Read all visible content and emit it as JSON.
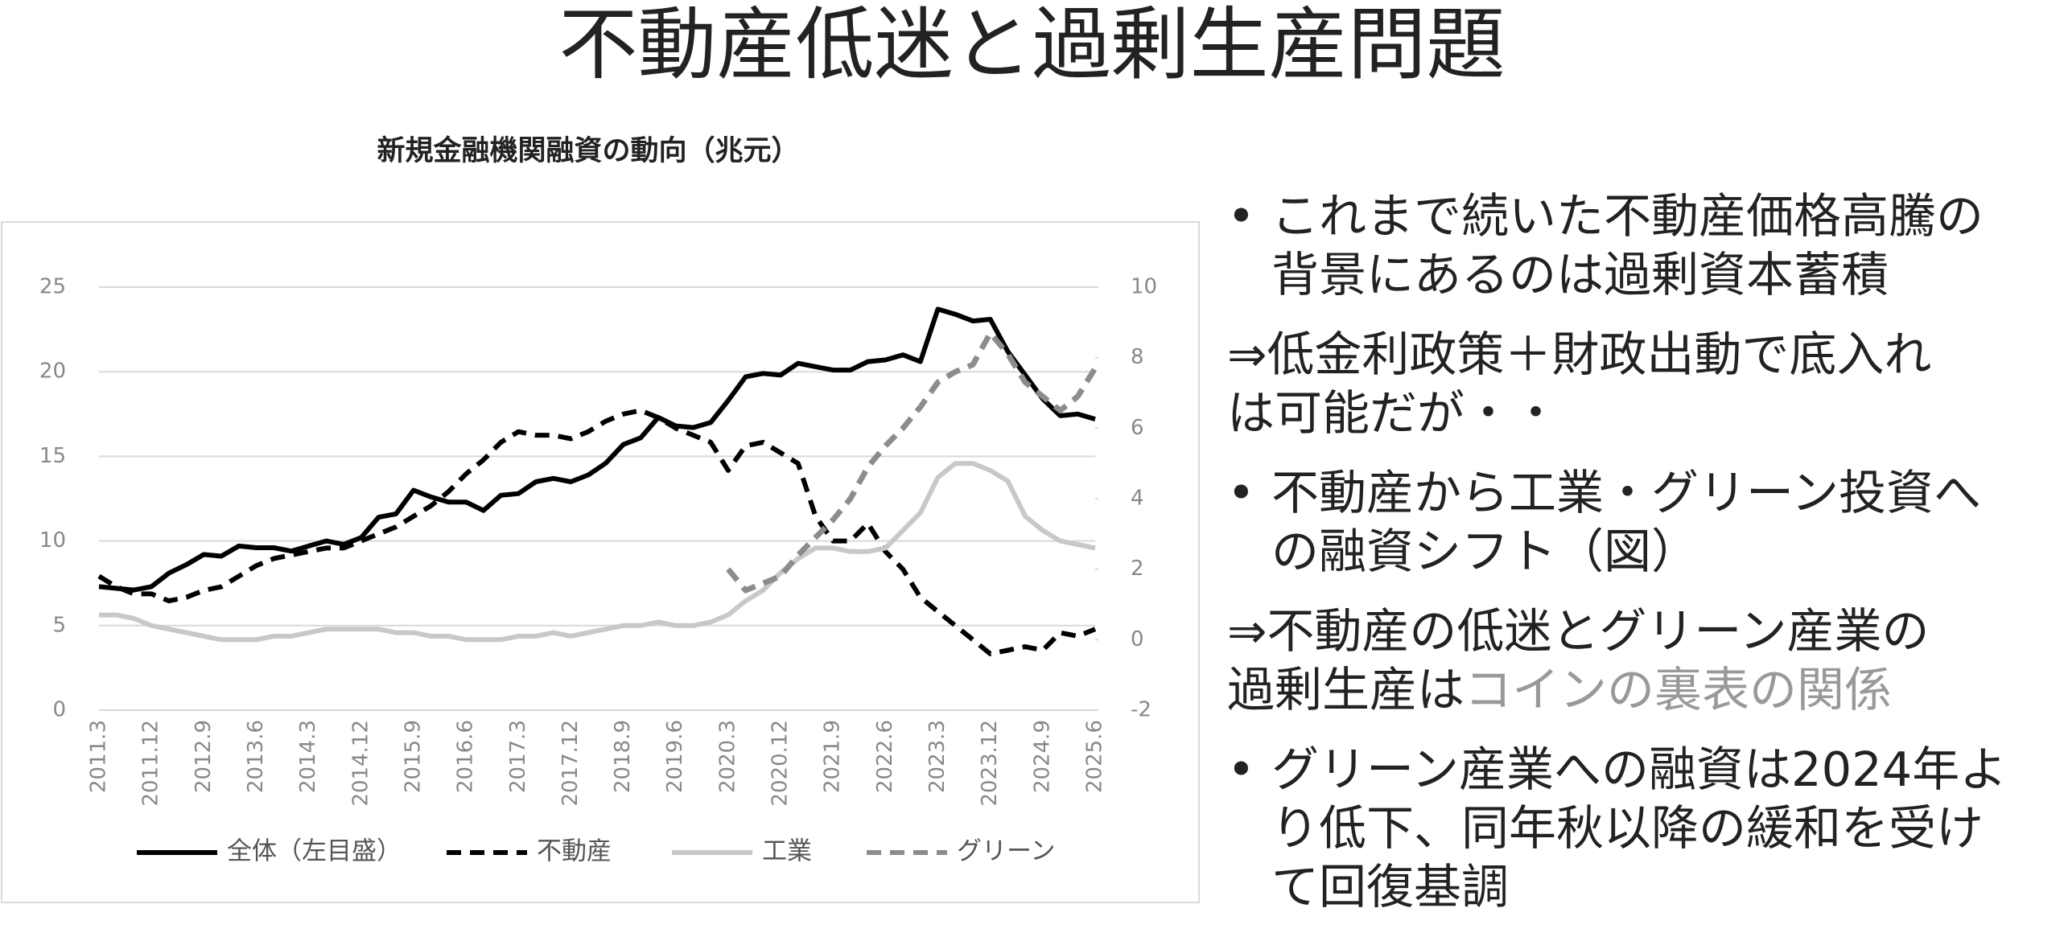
{
  "title": "不動産低迷と過剰生産問題",
  "chart_data": {
    "type": "line",
    "title": "新規金融機関融資の動向（兆元）",
    "categories": [
      "2011.3",
      null,
      null,
      "2011.12",
      null,
      null,
      "2012.9",
      null,
      null,
      "2013.6",
      null,
      null,
      "2014.3",
      null,
      null,
      "2014.12",
      null,
      null,
      "2015.9",
      null,
      null,
      "2016.6",
      null,
      null,
      "2017.3",
      null,
      null,
      "2017.12",
      null,
      null,
      "2018.9",
      null,
      null,
      "2019.6",
      null,
      null,
      "2020.3",
      null,
      null,
      "2020.12",
      null,
      null,
      "2021.9",
      null,
      null,
      "2022.6",
      null,
      null,
      "2023.3",
      null,
      null,
      "2023.12",
      null,
      null,
      "2024.9",
      null,
      null,
      "2025.6"
    ],
    "series": [
      {
        "name": "全体（左目盛）",
        "color": "#000000",
        "dash": false,
        "axis": "y",
        "values": [
          7.3,
          7.2,
          7.1,
          7.3,
          8.1,
          8.6,
          9.2,
          9.1,
          9.7,
          9.6,
          9.6,
          9.4,
          9.7,
          10.0,
          9.8,
          10.2,
          11.4,
          11.6,
          13.0,
          12.6,
          12.3,
          12.3,
          11.8,
          12.7,
          12.8,
          13.5,
          13.7,
          13.5,
          13.9,
          14.6,
          15.7,
          16.1,
          17.3,
          16.8,
          16.7,
          17.0,
          18.3,
          19.7,
          19.9,
          19.8,
          20.5,
          20.3,
          20.1,
          20.1,
          20.6,
          20.7,
          21.0,
          20.6,
          23.7,
          23.4,
          23.0,
          23.1,
          21.2,
          19.8,
          18.4,
          17.4,
          17.5,
          17.2
        ]
      },
      {
        "name": "不動産",
        "color": "#000000",
        "dash": true,
        "axis": "y2",
        "values": [
          1.8,
          1.5,
          1.3,
          1.3,
          1.1,
          1.2,
          1.4,
          1.5,
          1.8,
          2.1,
          2.3,
          2.4,
          2.5,
          2.6,
          2.6,
          2.8,
          3.0,
          3.2,
          3.5,
          3.8,
          4.2,
          4.7,
          5.1,
          5.6,
          5.9,
          5.8,
          5.8,
          5.7,
          5.9,
          6.2,
          6.4,
          6.5,
          6.3,
          6.0,
          5.8,
          5.6,
          4.8,
          5.5,
          5.6,
          5.3,
          5.0,
          3.5,
          2.8,
          2.8,
          3.3,
          2.5,
          2.0,
          1.2,
          0.8,
          0.4,
          0.0,
          -0.4,
          -0.3,
          -0.2,
          -0.3,
          0.2,
          0.1,
          0.3
        ]
      },
      {
        "name": "工業",
        "color": "#c8c8c8",
        "dash": false,
        "axis": "y2",
        "values": [
          0.7,
          0.7,
          0.6,
          0.4,
          0.3,
          0.2,
          0.1,
          0.0,
          0.0,
          0.0,
          0.1,
          0.1,
          0.2,
          0.3,
          0.3,
          0.3,
          0.3,
          0.2,
          0.2,
          0.1,
          0.1,
          0.0,
          0.0,
          0.0,
          0.1,
          0.1,
          0.2,
          0.1,
          0.2,
          0.3,
          0.4,
          0.4,
          0.5,
          0.4,
          0.4,
          0.5,
          0.7,
          1.1,
          1.4,
          1.9,
          2.3,
          2.6,
          2.6,
          2.5,
          2.5,
          2.6,
          3.1,
          3.6,
          4.6,
          5.0,
          5.0,
          4.8,
          4.5,
          3.5,
          3.1,
          2.8,
          2.7,
          2.6
        ]
      },
      {
        "name": "グリーン",
        "color": "#8c8c8c",
        "dash": true,
        "axis": "y2",
        "values": [
          null,
          null,
          null,
          null,
          null,
          null,
          null,
          null,
          null,
          null,
          null,
          null,
          null,
          null,
          null,
          null,
          null,
          null,
          null,
          null,
          null,
          null,
          null,
          null,
          null,
          null,
          null,
          null,
          null,
          null,
          null,
          null,
          null,
          null,
          null,
          null,
          2.0,
          1.4,
          1.6,
          1.8,
          2.4,
          2.9,
          3.4,
          4.0,
          4.9,
          5.5,
          6.0,
          6.6,
          7.3,
          7.6,
          7.8,
          8.7,
          8.1,
          7.3,
          6.9,
          6.5,
          6.9,
          7.7
        ]
      }
    ],
    "ylim": [
      0,
      25
    ],
    "yticks": [
      0,
      5,
      10,
      15,
      20,
      25
    ],
    "y2lim": [
      -2,
      10
    ],
    "y2ticks": [
      -2,
      0,
      2,
      4,
      6,
      8,
      10
    ],
    "grid": true,
    "legend": "bottom"
  },
  "blocks": [
    {
      "bullet": true,
      "lines": [
        "これまで続いた不動産価格高騰の",
        "背景にあるのは過剰資本蓄積"
      ]
    },
    {
      "bullet": false,
      "lines": [
        "⇒低金利政策＋財政出動で底入れ",
        "は可能だが・・"
      ]
    },
    {
      "bullet": true,
      "lines": [
        "不動産から工業・グリーン投資へ",
        "の融資シフト（図）"
      ]
    },
    {
      "bullet": false,
      "lines": [
        "⇒不動産の低迷とグリーン産業の",
        "過剰生産は"
      ],
      "highlight": "コインの裏表の関係"
    },
    {
      "bullet": true,
      "lines": [
        "グリーン産業への融資は2024年よ",
        "り低下、同年秋以降の緩和を受け",
        "て回復基調"
      ]
    }
  ]
}
